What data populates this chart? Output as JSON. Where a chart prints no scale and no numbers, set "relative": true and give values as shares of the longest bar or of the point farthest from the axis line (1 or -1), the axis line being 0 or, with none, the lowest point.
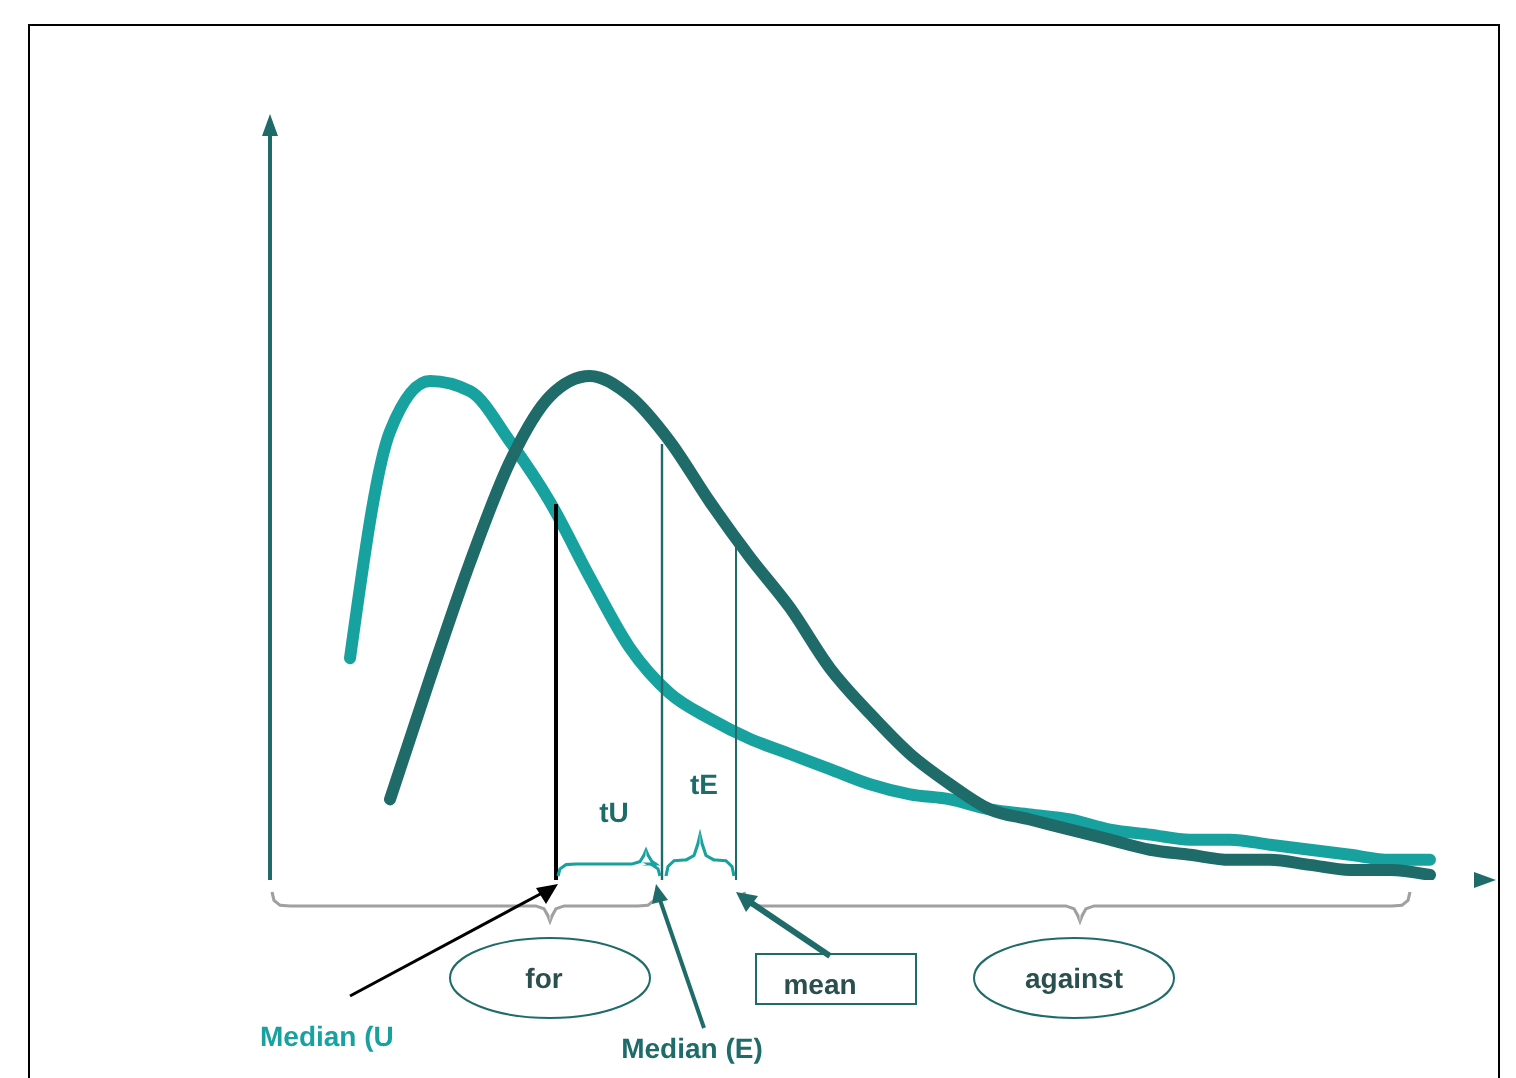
{
  "chart_data": {
    "type": "line",
    "relative": true,
    "categories": [
      null,
      null,
      null,
      null,
      null,
      null,
      null,
      null,
      null,
      null,
      null,
      null,
      null,
      null,
      null,
      null,
      null,
      null,
      null,
      null,
      null,
      null,
      null,
      null,
      null,
      null,
      null,
      null,
      null,
      null,
      null
    ],
    "series": [
      {
        "color": "#17a2a0",
        "values": [
          null,
          null,
          0.44,
          0.89,
          0.99,
          0.97,
          0.87,
          0.75,
          0.6,
          0.46,
          0.37,
          0.32,
          0.28,
          0.25,
          0.22,
          0.19,
          0.17,
          0.16,
          0.14,
          0.13,
          0.12,
          0.1,
          0.09,
          0.08,
          0.08,
          0.07,
          0.06,
          0.05,
          0.04,
          0.04,
          null
        ]
      },
      {
        "color": "#1e6b6a",
        "values": [
          null,
          null,
          null,
          0.16,
          0.4,
          0.63,
          0.83,
          0.96,
          1,
          0.96,
          0.87,
          0.75,
          0.64,
          0.54,
          0.42,
          0.33,
          0.25,
          0.19,
          0.14,
          0.12,
          0.1,
          0.08,
          0.06,
          0.05,
          0.04,
          0.04,
          0.03,
          0.02,
          0.02,
          0.01,
          null
        ]
      }
    ],
    "annotations": [
      "tU",
      "tE",
      "for",
      "mean",
      "against",
      "Median (U",
      "Median (E)"
    ],
    "legend": false,
    "grid": false,
    "marker": "none",
    "line_style": "solid"
  }
}
